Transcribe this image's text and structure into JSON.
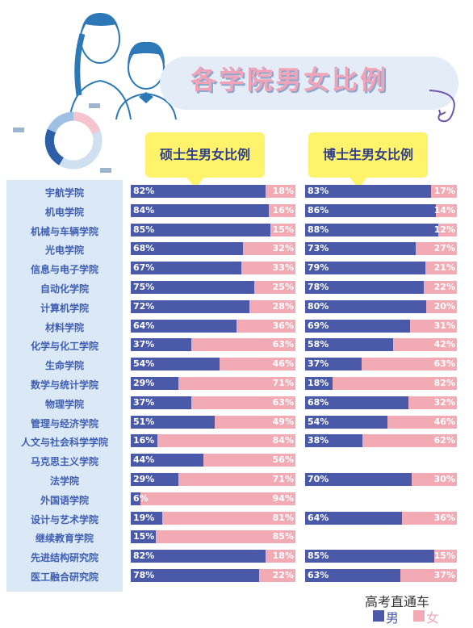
{
  "title": "各学院男女比例",
  "bubbles": {
    "master": "硕士生男女比例",
    "phd": "博士生男女比例"
  },
  "colors": {
    "male": "#4a5aa8",
    "female": "#f2aab4"
  },
  "watermark": "高考直通车",
  "legend": {
    "male": "男",
    "female": "女"
  },
  "chart_data": [
    {
      "type": "bar",
      "stacked": true,
      "orientation": "horizontal",
      "title": "硕士生男女比例",
      "categories": [
        "宇航学院",
        "机电学院",
        "机械与车辆学院",
        "光电学院",
        "信息与电子学院",
        "自动化学院",
        "计算机学院",
        "材料学院",
        "化学与化工学院",
        "生命学院",
        "数学与统计学院",
        "物理学院",
        "管理与经济学院",
        "人文与社会科学学院",
        "马克思主义学院",
        "法学院",
        "外国语学院",
        "设计与艺术学院",
        "继续教育学院",
        "先进结构研究院",
        "医工融合研究院"
      ],
      "series": [
        {
          "name": "男",
          "values": [
            82,
            84,
            85,
            68,
            67,
            75,
            72,
            64,
            37,
            54,
            29,
            37,
            51,
            16,
            44,
            29,
            6,
            19,
            15,
            82,
            78
          ],
          "labels": [
            "82%",
            "84%",
            "85%",
            "68%",
            "67%",
            "75%",
            "72%",
            "64%",
            "37%",
            "54%",
            "29%",
            "37%",
            "51%",
            "16%",
            "44%",
            "29%",
            "6%",
            "19%",
            "15%",
            "82%",
            "78%"
          ]
        },
        {
          "name": "女",
          "values": [
            18,
            16,
            15,
            32,
            33,
            25,
            28,
            36,
            63,
            46,
            71,
            63,
            49,
            84,
            56,
            71,
            94,
            81,
            85,
            18,
            22
          ],
          "labels": [
            "18%",
            "16%",
            "15%",
            "32%",
            "33%",
            "25%",
            "28%",
            "36%",
            "63%",
            "46%",
            "71%",
            "63%",
            "49%",
            "84%",
            "56%",
            "71%",
            "94%",
            "81%",
            "85%",
            "18%",
            "22%"
          ]
        }
      ]
    },
    {
      "type": "bar",
      "stacked": true,
      "orientation": "horizontal",
      "title": "博士生男女比例",
      "categories": [
        "宇航学院",
        "机电学院",
        "机械与车辆学院",
        "光电学院",
        "信息与电子学院",
        "自动化学院",
        "计算机学院",
        "材料学院",
        "化学与化工学院",
        "生命学院",
        "数学与统计学院",
        "物理学院",
        "管理与经济学院",
        "人文与社会科学学院",
        "马克思主义学院",
        "法学院",
        "外国语学院",
        "设计与艺术学院",
        "继续教育学院",
        "先进结构研究院",
        "医工融合研究院"
      ],
      "series": [
        {
          "name": "男",
          "values": [
            83,
            86,
            88,
            73,
            79,
            78,
            80,
            69,
            58,
            37,
            18,
            68,
            54,
            38,
            null,
            70,
            null,
            64,
            null,
            85,
            63
          ],
          "labels": [
            "83%",
            "86%",
            "88%",
            "73%",
            "79%",
            "78%",
            "80%",
            "69%",
            "58%",
            "37%",
            "18%",
            "68%",
            "54%",
            "38%",
            null,
            "70%",
            null,
            "64%",
            null,
            "85%",
            "63%"
          ]
        },
        {
          "name": "女",
          "values": [
            17,
            14,
            12,
            27,
            21,
            22,
            20,
            31,
            42,
            63,
            82,
            32,
            46,
            62,
            null,
            30,
            null,
            36,
            null,
            15,
            37
          ],
          "labels": [
            "17%",
            "14%",
            "12%",
            "27%",
            "21%",
            "22%",
            "20%",
            "31%",
            "42%",
            "63%",
            "82%",
            "32%",
            "46%",
            "62%",
            null,
            "30%",
            null,
            "36%",
            null,
            "15%",
            "37%"
          ]
        }
      ]
    }
  ]
}
